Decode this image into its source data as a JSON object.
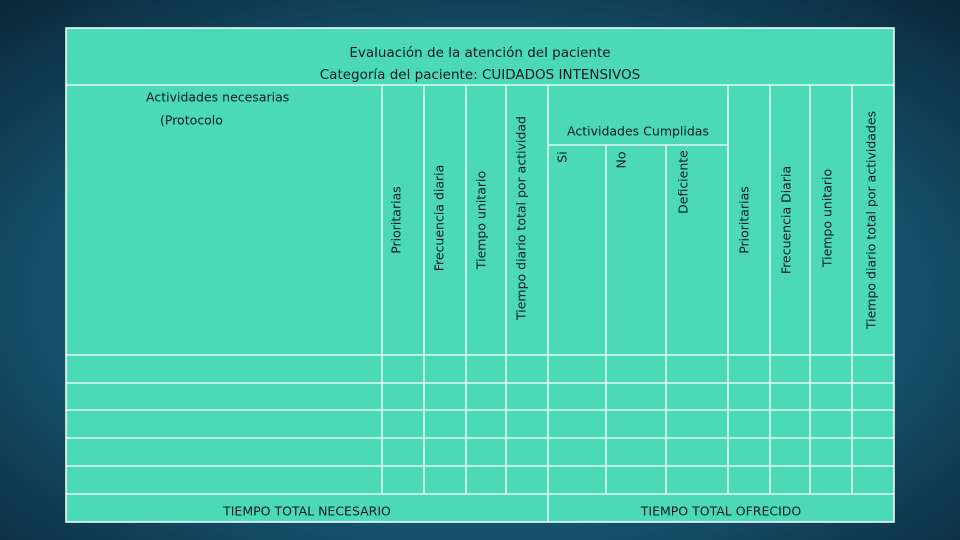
{
  "table": {
    "title": [
      "Evaluación de la atención del paciente",
      "Categoría del paciente: CUIDADOS INTENSIVOS"
    ],
    "left_header": [
      "Actividades necesarias",
      "(Protocolo"
    ],
    "columns_needed": [
      "Prioritarias",
      "Frecuencia diaria",
      "Tiempo unitario",
      "Tiempo diario total por actividad"
    ],
    "fulfilled_header": "Actividades Cumplidas",
    "fulfilled_columns": [
      "Si",
      "No",
      "Deficiente"
    ],
    "columns_offered": [
      "Prioritarias",
      "Frecuencia Diaria",
      "Tiempo unitario",
      "Tiempo diario total por actividades"
    ],
    "footer": [
      "TIEMPO TOTAL NECESARIO",
      "TIEMPO TOTAL OFRECIDO"
    ]
  }
}
